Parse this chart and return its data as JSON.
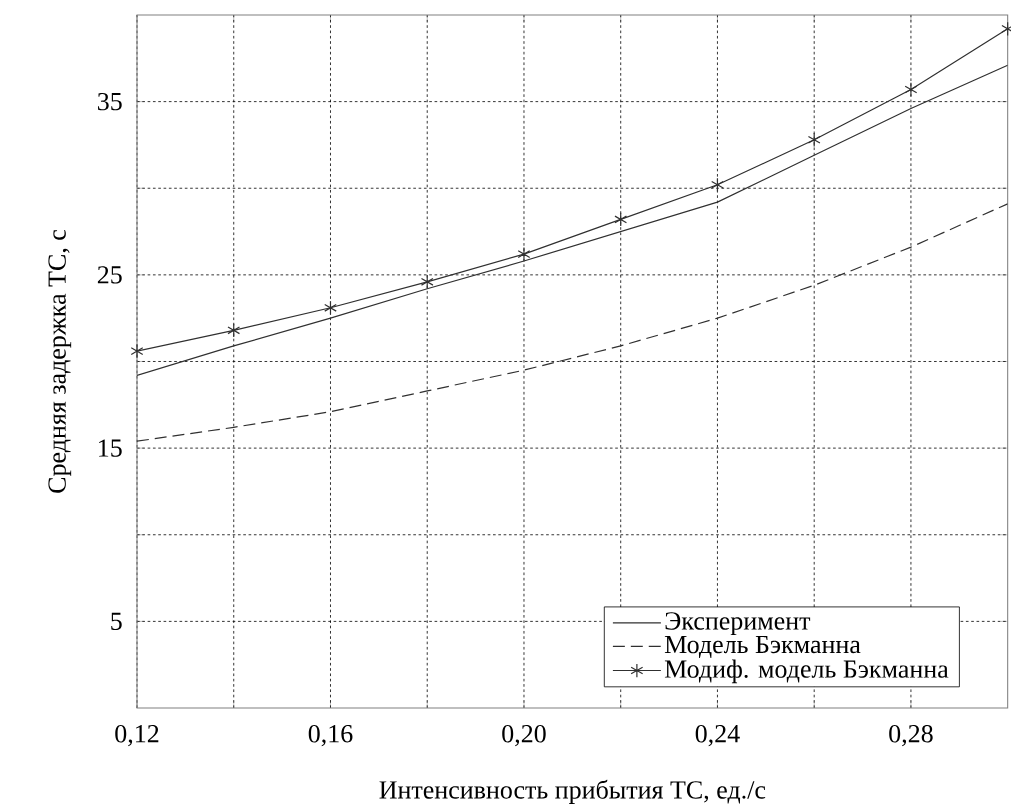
{
  "chart_data": {
    "type": "line",
    "xlabel": "Интенсивность прибытия ТС, ед./с",
    "ylabel": "Средняя задержка ТС, с",
    "x": [
      0.12,
      0.14,
      0.16,
      0.18,
      0.2,
      0.22,
      0.24,
      0.26,
      0.28,
      0.3
    ],
    "series": [
      {
        "name": "Эксперимент",
        "color": "#303030",
        "line_style": "solid",
        "marker": "none",
        "values": [
          19.2,
          20.9,
          22.5,
          24.2,
          25.8,
          27.5,
          29.2,
          31.9,
          34.6,
          37.1
        ]
      },
      {
        "name": "Модель Бэкманна",
        "color": "#303030",
        "line_style": "dashed",
        "marker": "none",
        "values": [
          15.4,
          16.2,
          17.1,
          18.3,
          19.5,
          20.9,
          22.5,
          24.4,
          26.6,
          29.1
        ]
      },
      {
        "name": "Модиф. модель Бэкманна",
        "color": "#303030",
        "line_style": "solid",
        "marker": "cross",
        "values": [
          20.6,
          21.8,
          23.1,
          24.6,
          26.2,
          28.2,
          30.2,
          32.8,
          35.7,
          39.2
        ]
      }
    ],
    "xlim": [
      0.12,
      0.3
    ],
    "xticks": [
      {
        "value": 0.12,
        "label": "0,12"
      },
      {
        "value": 0.14,
        "label": null
      },
      {
        "value": 0.16,
        "label": "0,16"
      },
      {
        "value": 0.18,
        "label": null
      },
      {
        "value": 0.2,
        "label": "0,20"
      },
      {
        "value": 0.22,
        "label": null
      },
      {
        "value": 0.24,
        "label": "0,24"
      },
      {
        "value": 0.26,
        "label": null
      },
      {
        "value": 0.28,
        "label": "0,28"
      }
    ],
    "ylim": [
      0,
      40
    ],
    "yticks": [
      5,
      {
        "value": 10,
        "label": null
      },
      15,
      {
        "value": 20,
        "label": null
      },
      25,
      {
        "value": 30,
        "label": null
      },
      35
    ],
    "grid": true,
    "legend": "bottom right"
  }
}
